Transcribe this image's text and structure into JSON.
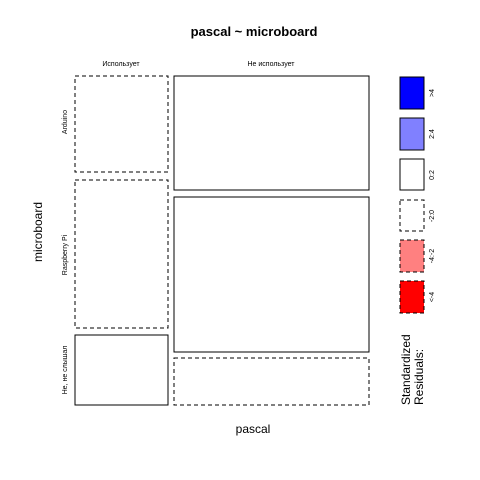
{
  "chart_data": {
    "type": "mosaic",
    "title": "pascal ~ microboard",
    "xlabel": "pascal",
    "ylabel": "microboard",
    "x_categories": [
      "Использует",
      "Не использует"
    ],
    "y_categories": [
      "Arduino",
      "Raspberry Pi",
      "Не, не слышал"
    ],
    "cells": [
      {
        "x": "Использует",
        "y": "Arduino",
        "residual_class": "<-2:0"
      },
      {
        "x": "Использует",
        "y": "Raspberry Pi",
        "residual_class": "<-2:0"
      },
      {
        "x": "Использует",
        "y": "Не, не слышал",
        "residual_class": "0:2"
      },
      {
        "x": "Не использует",
        "y": "Arduino",
        "residual_class": "0:2"
      },
      {
        "x": "Не использует",
        "y": "Raspberry Pi",
        "residual_class": "0:2"
      },
      {
        "x": "Не использует",
        "y": "Не, не слышал",
        "residual_class": "<-2:0"
      }
    ],
    "legend": {
      "title_line1": "Standardized",
      "title_line2": "Residuals:",
      "entries": [
        {
          "label": ">4",
          "fill": "#0000ff",
          "dashed": false
        },
        {
          "label": "2:4",
          "fill": "#8080ff",
          "dashed": false
        },
        {
          "label": "0:2",
          "fill": "#ffffff",
          "dashed": false
        },
        {
          "label": "-2:0",
          "fill": "#ffffff",
          "dashed": true
        },
        {
          "label": "-4:-2",
          "fill": "#ff8080",
          "dashed": true
        },
        {
          "label": "<-4",
          "fill": "#ff0000",
          "dashed": true
        }
      ]
    }
  }
}
